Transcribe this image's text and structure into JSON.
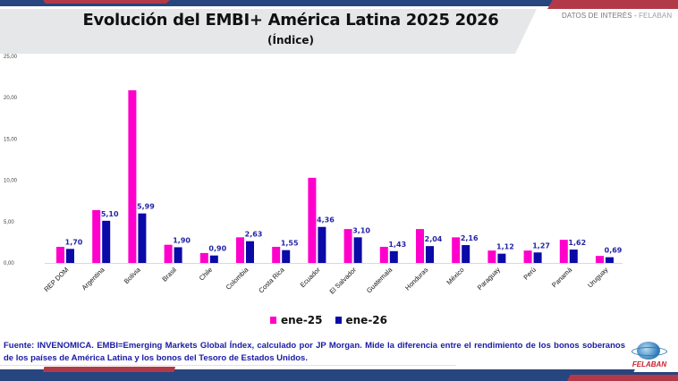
{
  "header": {
    "title": "Evolución del EMBI+ América Latina 2025 2026",
    "subtitle": "(Índice)",
    "datos_label": "DATOS DE INTERÉS - ",
    "datos_brand": "FELABAN"
  },
  "colors": {
    "ene25": "#ff00cc",
    "ene26": "#0a0aa8",
    "label": "#2424a8",
    "band_blue": "#27457e",
    "band_red": "#b23a48"
  },
  "chart_data": {
    "type": "bar",
    "title": "Evolución del EMBI+ América Latina 2025 2026",
    "subtitle": "(Índice)",
    "xlabel": "",
    "ylabel": "",
    "ylim": [
      0,
      25
    ],
    "yticks": [
      "0,00",
      "5,00",
      "10,00",
      "15,00",
      "20,00",
      "25,00"
    ],
    "ytick_values": [
      0,
      5,
      10,
      15,
      20,
      25
    ],
    "grid": false,
    "legend_position": "bottom",
    "categories": [
      "REP DOM",
      "Argentina",
      "Bolivia",
      "Brasil",
      "Chile",
      "Colombia",
      "Costa Rica",
      "Ecuador",
      "El Salvador",
      "Guatemala",
      "Honduras",
      "México",
      "Paraguay",
      "Perú",
      "Panamá",
      "Uruguay"
    ],
    "series": [
      {
        "name": "ene-25",
        "values": [
          1.95,
          6.4,
          20.9,
          2.2,
          1.2,
          3.1,
          1.95,
          10.3,
          4.1,
          1.95,
          4.1,
          3.1,
          1.5,
          1.5,
          2.8,
          0.85
        ],
        "data_labels": null
      },
      {
        "name": "ene-26",
        "values": [
          1.7,
          5.1,
          5.99,
          1.9,
          0.9,
          2.63,
          1.55,
          4.36,
          3.1,
          1.43,
          2.04,
          2.16,
          1.12,
          1.27,
          1.62,
          0.69
        ],
        "data_labels": [
          "1,70",
          "5,10",
          "5,99",
          "1,90",
          "0,90",
          "2,63",
          "1,55",
          "4,36",
          "3,10",
          "1,43",
          "2,04",
          "2,16",
          "1,12",
          "1,27",
          "1,62",
          "0,69"
        ]
      }
    ]
  },
  "legend": [
    {
      "label": "ene-25"
    },
    {
      "label": "ene-26"
    }
  ],
  "footer": {
    "source": "Fuente: INVENOMICA. EMBI=Emerging Markets Global Índex, calculado por JP Morgan. Mide la diferencia entre el rendimiento de los bonos soberanos de los países de América Latina y los bonos del Tesoro de Estados Unidos.",
    "logo_text": "FELABAN"
  }
}
